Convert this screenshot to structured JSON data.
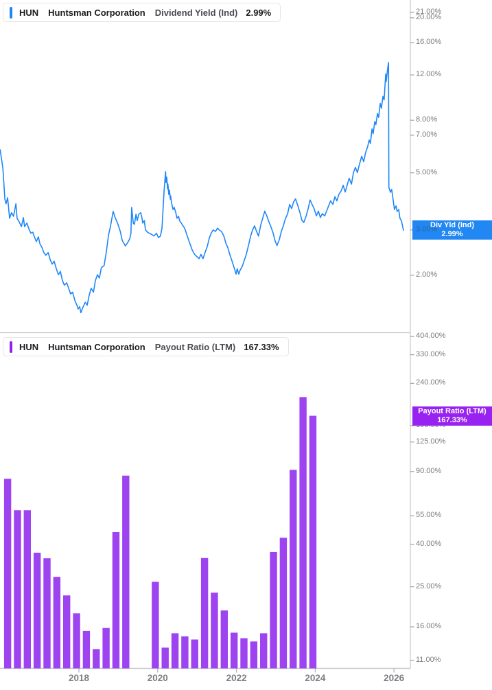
{
  "x_axis": {
    "tick_labels": [
      "2018",
      "2020",
      "2022",
      "2024",
      "2026"
    ],
    "tick_years": [
      2018,
      2020,
      2022,
      2024,
      2026
    ]
  },
  "panel_dividend_yield": {
    "header": {
      "ticker": "HUN",
      "company": "Huntsman Corporation",
      "metric": "Dividend Yield (Ind)",
      "value": "2.99%"
    },
    "badge": {
      "title": "Div Yld (Ind)",
      "value": "2.99%"
    },
    "y_tick_labels": [
      "21.00%",
      "20.00%",
      "16.00%",
      "12.00%",
      "8.00%",
      "7.00%",
      "5.00%",
      "3.00%",
      "2.00%"
    ],
    "colors": {
      "accent": "#1f87f2",
      "line": "#1e87f8",
      "badge_bg": "#2187f2"
    }
  },
  "panel_payout_ratio": {
    "header": {
      "ticker": "HUN",
      "company": "Huntsman Corporation",
      "metric": "Payout Ratio (LTM)",
      "value": "167.33%"
    },
    "badge": {
      "title": "Payout Ratio (LTM)",
      "value": "167.33%"
    },
    "y_tick_labels": [
      "404.00%",
      "330.00%",
      "240.00%",
      "150.00%",
      "125.00%",
      "90.00%",
      "55.00%",
      "40.00%",
      "25.00%",
      "16.00%",
      "11.00%"
    ],
    "colors": {
      "accent": "#9320f0",
      "bar": "#9d44f0",
      "badge_bg": "#9823f0"
    }
  },
  "chart_data": [
    {
      "type": "line",
      "panel": "dividend_yield",
      "title": "HUN Dividend Yield (Ind)",
      "unit": "%",
      "y_scale": "log",
      "x_unit": "decimal_year",
      "y_ticks": [
        21,
        20,
        16,
        12,
        8,
        7,
        5,
        3,
        2
      ],
      "latest": 2.99,
      "legend": "Div Yld (Ind)",
      "points": [
        [
          2016.0,
          6.15
        ],
        [
          2016.07,
          5.21
        ],
        [
          2016.12,
          3.95
        ],
        [
          2016.15,
          3.79
        ],
        [
          2016.19,
          4.0
        ],
        [
          2016.24,
          3.33
        ],
        [
          2016.29,
          3.5
        ],
        [
          2016.34,
          3.39
        ],
        [
          2016.4,
          3.79
        ],
        [
          2016.43,
          3.33
        ],
        [
          2016.48,
          3.23
        ],
        [
          2016.54,
          3.09
        ],
        [
          2016.59,
          3.35
        ],
        [
          2016.62,
          3.09
        ],
        [
          2016.68,
          3.19
        ],
        [
          2016.73,
          3.03
        ],
        [
          2016.78,
          2.91
        ],
        [
          2016.83,
          2.94
        ],
        [
          2016.87,
          2.82
        ],
        [
          2016.92,
          2.7
        ],
        [
          2016.97,
          2.82
        ],
        [
          2017.01,
          2.65
        ],
        [
          2017.06,
          2.57
        ],
        [
          2017.11,
          2.45
        ],
        [
          2017.16,
          2.39
        ],
        [
          2017.22,
          2.45
        ],
        [
          2017.27,
          2.3
        ],
        [
          2017.32,
          2.21
        ],
        [
          2017.37,
          2.27
        ],
        [
          2017.43,
          2.11
        ],
        [
          2017.48,
          2.01
        ],
        [
          2017.53,
          2.07
        ],
        [
          2017.58,
          1.91
        ],
        [
          2017.63,
          1.83
        ],
        [
          2017.69,
          1.87
        ],
        [
          2017.74,
          1.78
        ],
        [
          2017.79,
          1.69
        ],
        [
          2017.84,
          1.72
        ],
        [
          2017.9,
          1.59
        ],
        [
          2017.95,
          1.53
        ],
        [
          2017.98,
          1.48
        ],
        [
          2018.02,
          1.51
        ],
        [
          2018.05,
          1.43
        ],
        [
          2018.1,
          1.5
        ],
        [
          2018.16,
          1.57
        ],
        [
          2018.21,
          1.53
        ],
        [
          2018.26,
          1.67
        ],
        [
          2018.31,
          1.78
        ],
        [
          2018.37,
          1.72
        ],
        [
          2018.42,
          1.91
        ],
        [
          2018.47,
          2.01
        ],
        [
          2018.52,
          1.95
        ],
        [
          2018.57,
          2.14
        ],
        [
          2018.64,
          2.18
        ],
        [
          2018.7,
          2.49
        ],
        [
          2018.75,
          2.86
        ],
        [
          2018.8,
          3.09
        ],
        [
          2018.87,
          3.54
        ],
        [
          2018.92,
          3.35
        ],
        [
          2018.98,
          3.19
        ],
        [
          2019.05,
          2.96
        ],
        [
          2019.1,
          2.73
        ],
        [
          2019.15,
          2.65
        ],
        [
          2019.18,
          2.6
        ],
        [
          2019.24,
          2.68
        ],
        [
          2019.29,
          2.77
        ],
        [
          2019.32,
          2.91
        ],
        [
          2019.34,
          3.67
        ],
        [
          2019.38,
          3.19
        ],
        [
          2019.41,
          3.15
        ],
        [
          2019.45,
          3.45
        ],
        [
          2019.48,
          3.26
        ],
        [
          2019.52,
          3.45
        ],
        [
          2019.57,
          3.5
        ],
        [
          2019.6,
          3.35
        ],
        [
          2019.62,
          3.19
        ],
        [
          2019.66,
          3.26
        ],
        [
          2019.69,
          3.0
        ],
        [
          2019.74,
          2.94
        ],
        [
          2019.79,
          2.91
        ],
        [
          2019.85,
          2.88
        ],
        [
          2019.9,
          2.84
        ],
        [
          2019.97,
          2.91
        ],
        [
          2020.02,
          2.8
        ],
        [
          2020.07,
          2.84
        ],
        [
          2020.11,
          3.05
        ],
        [
          2020.16,
          4.2
        ],
        [
          2020.2,
          5.05
        ],
        [
          2020.21,
          4.58
        ],
        [
          2020.23,
          4.81
        ],
        [
          2020.25,
          4.33
        ],
        [
          2020.26,
          4.52
        ],
        [
          2020.28,
          4.12
        ],
        [
          2020.3,
          4.28
        ],
        [
          2020.32,
          3.95
        ],
        [
          2020.33,
          4.07
        ],
        [
          2020.35,
          3.83
        ],
        [
          2020.39,
          3.6
        ],
        [
          2020.42,
          3.67
        ],
        [
          2020.46,
          3.5
        ],
        [
          2020.49,
          3.33
        ],
        [
          2020.53,
          3.39
        ],
        [
          2020.56,
          3.25
        ],
        [
          2020.6,
          3.19
        ],
        [
          2020.63,
          3.13
        ],
        [
          2020.67,
          3.07
        ],
        [
          2020.7,
          3.0
        ],
        [
          2020.74,
          2.87
        ],
        [
          2020.79,
          2.73
        ],
        [
          2020.84,
          2.6
        ],
        [
          2020.87,
          2.52
        ],
        [
          2020.93,
          2.42
        ],
        [
          2020.96,
          2.39
        ],
        [
          2021.0,
          2.36
        ],
        [
          2021.05,
          2.32
        ],
        [
          2021.1,
          2.41
        ],
        [
          2021.15,
          2.32
        ],
        [
          2021.21,
          2.47
        ],
        [
          2021.26,
          2.59
        ],
        [
          2021.31,
          2.79
        ],
        [
          2021.36,
          2.92
        ],
        [
          2021.41,
          3.0
        ],
        [
          2021.47,
          2.96
        ],
        [
          2021.52,
          3.05
        ],
        [
          2021.57,
          2.99
        ],
        [
          2021.62,
          2.96
        ],
        [
          2021.68,
          2.84
        ],
        [
          2021.73,
          2.67
        ],
        [
          2021.78,
          2.56
        ],
        [
          2021.83,
          2.41
        ],
        [
          2021.88,
          2.29
        ],
        [
          2021.94,
          2.14
        ],
        [
          2021.99,
          2.02
        ],
        [
          2022.02,
          2.12
        ],
        [
          2022.06,
          2.02
        ],
        [
          2022.09,
          2.09
        ],
        [
          2022.15,
          2.17
        ],
        [
          2022.2,
          2.29
        ],
        [
          2022.25,
          2.41
        ],
        [
          2022.3,
          2.59
        ],
        [
          2022.36,
          2.84
        ],
        [
          2022.41,
          3.0
        ],
        [
          2022.46,
          3.11
        ],
        [
          2022.51,
          2.96
        ],
        [
          2022.56,
          2.84
        ],
        [
          2022.62,
          3.15
        ],
        [
          2022.67,
          3.35
        ],
        [
          2022.72,
          3.55
        ],
        [
          2022.77,
          3.4
        ],
        [
          2022.83,
          3.21
        ],
        [
          2022.88,
          3.07
        ],
        [
          2022.93,
          2.92
        ],
        [
          2022.98,
          2.72
        ],
        [
          2023.03,
          2.61
        ],
        [
          2023.09,
          2.76
        ],
        [
          2023.14,
          2.96
        ],
        [
          2023.19,
          3.11
        ],
        [
          2023.24,
          3.31
        ],
        [
          2023.3,
          3.47
        ],
        [
          2023.35,
          3.77
        ],
        [
          2023.4,
          3.63
        ],
        [
          2023.45,
          3.85
        ],
        [
          2023.5,
          3.96
        ],
        [
          2023.56,
          3.72
        ],
        [
          2023.61,
          3.51
        ],
        [
          2023.66,
          3.27
        ],
        [
          2023.71,
          3.21
        ],
        [
          2023.77,
          3.4
        ],
        [
          2023.82,
          3.63
        ],
        [
          2023.87,
          3.92
        ],
        [
          2023.92,
          3.77
        ],
        [
          2023.97,
          3.63
        ],
        [
          2024.03,
          3.4
        ],
        [
          2024.08,
          3.55
        ],
        [
          2024.13,
          3.35
        ],
        [
          2024.18,
          3.47
        ],
        [
          2024.24,
          3.4
        ],
        [
          2024.29,
          3.55
        ],
        [
          2024.34,
          3.72
        ],
        [
          2024.39,
          3.89
        ],
        [
          2024.45,
          3.77
        ],
        [
          2024.5,
          4.04
        ],
        [
          2024.55,
          3.89
        ],
        [
          2024.6,
          4.12
        ],
        [
          2024.66,
          4.26
        ],
        [
          2024.71,
          4.47
        ],
        [
          2024.76,
          4.21
        ],
        [
          2024.81,
          4.47
        ],
        [
          2024.86,
          4.76
        ],
        [
          2024.92,
          4.52
        ],
        [
          2024.97,
          5.01
        ],
        [
          2025.02,
          5.25
        ],
        [
          2025.07,
          5.01
        ],
        [
          2025.12,
          5.38
        ],
        [
          2025.18,
          5.8
        ],
        [
          2025.23,
          5.52
        ],
        [
          2025.28,
          6.01
        ],
        [
          2025.33,
          6.3
        ],
        [
          2025.37,
          6.7
        ],
        [
          2025.4,
          6.5
        ],
        [
          2025.44,
          7.4
        ],
        [
          2025.47,
          7.1
        ],
        [
          2025.51,
          7.9
        ],
        [
          2025.54,
          7.7
        ],
        [
          2025.58,
          8.5
        ],
        [
          2025.61,
          8.2
        ],
        [
          2025.65,
          9.3
        ],
        [
          2025.68,
          8.9
        ],
        [
          2025.72,
          9.9
        ],
        [
          2025.75,
          9.6
        ],
        [
          2025.79,
          12.1
        ],
        [
          2025.8,
          11.3
        ],
        [
          2025.84,
          12.7
        ],
        [
          2025.86,
          13.4
        ],
        [
          2025.87,
          4.39
        ],
        [
          2025.91,
          4.2
        ],
        [
          2025.94,
          4.31
        ],
        [
          2025.98,
          3.9
        ],
        [
          2026.01,
          3.6
        ],
        [
          2026.05,
          3.72
        ],
        [
          2026.08,
          3.54
        ],
        [
          2026.12,
          3.6
        ],
        [
          2026.15,
          3.33
        ],
        [
          2026.19,
          3.25
        ],
        [
          2026.22,
          3.09
        ],
        [
          2026.24,
          2.99
        ]
      ]
    },
    {
      "type": "bar",
      "panel": "payout_ratio",
      "title": "HUN Payout Ratio (LTM)",
      "unit": "%",
      "y_scale": "log",
      "x_unit": "decimal_year_quarterly",
      "y_ticks": [
        404,
        330,
        240,
        150,
        125,
        90,
        55,
        40,
        25,
        16,
        11
      ],
      "latest": 167.33,
      "legend": "Payout Ratio (LTM)",
      "points": [
        [
          2016.19,
          83
        ],
        [
          2016.44,
          58.5
        ],
        [
          2016.69,
          58.5
        ],
        [
          2016.94,
          36.5
        ],
        [
          2017.19,
          34.3
        ],
        [
          2017.44,
          27.9
        ],
        [
          2017.69,
          22.7
        ],
        [
          2017.94,
          18.6
        ],
        [
          2018.19,
          15.3
        ],
        [
          2018.44,
          12.5
        ],
        [
          2018.69,
          15.8
        ],
        [
          2018.94,
          45.9
        ],
        [
          2019.19,
          86
        ],
        [
          2019.94,
          26.4
        ],
        [
          2020.19,
          12.7
        ],
        [
          2020.44,
          14.9
        ],
        [
          2020.69,
          14.4
        ],
        [
          2020.94,
          13.9
        ],
        [
          2021.19,
          34.4
        ],
        [
          2021.44,
          23.4
        ],
        [
          2021.69,
          19.2
        ],
        [
          2021.94,
          15.0
        ],
        [
          2022.19,
          14.1
        ],
        [
          2022.44,
          13.6
        ],
        [
          2022.69,
          14.9
        ],
        [
          2022.94,
          36.8
        ],
        [
          2023.19,
          43.1
        ],
        [
          2023.44,
          91.7
        ],
        [
          2023.69,
          206
        ],
        [
          2023.94,
          167.33
        ]
      ]
    }
  ]
}
